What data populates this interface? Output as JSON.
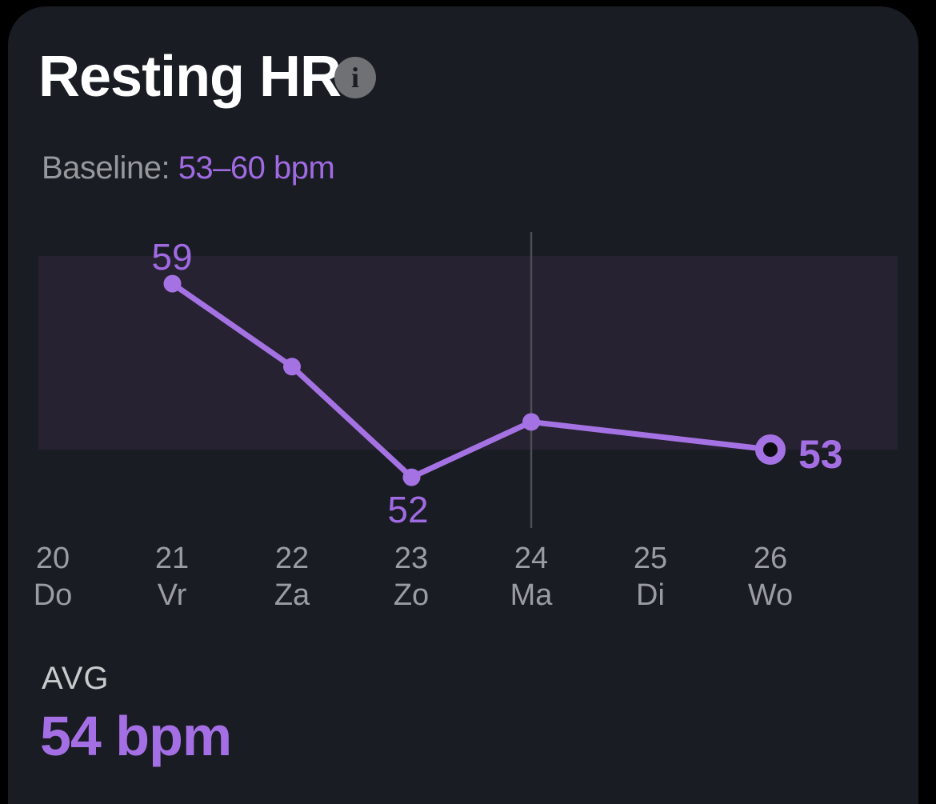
{
  "card": {
    "title": "Resting HR",
    "info_glyph": "i",
    "baseline_label": "Baseline:",
    "baseline_value": "53–60 bpm",
    "avg_label": "AVG",
    "avg_value": "54 bpm"
  },
  "chart_data": {
    "type": "line",
    "title": "Resting HR",
    "unit": "bpm",
    "x_labels": [
      {
        "date": "20",
        "day": "Do"
      },
      {
        "date": "21",
        "day": "Vr"
      },
      {
        "date": "22",
        "day": "Za"
      },
      {
        "date": "23",
        "day": "Zo"
      },
      {
        "date": "24",
        "day": "Ma"
      },
      {
        "date": "25",
        "day": "Di"
      },
      {
        "date": "26",
        "day": "Wo"
      }
    ],
    "series": [
      {
        "name": "Resting HR",
        "points": [
          {
            "x": 21,
            "y": 59,
            "label": "59",
            "label_pos": "above"
          },
          {
            "x": 22,
            "y": 56
          },
          {
            "x": 23,
            "y": 52,
            "label": "52",
            "label_pos": "below"
          },
          {
            "x": 24,
            "y": 54
          },
          {
            "x": 26,
            "y": 53,
            "label": "53",
            "label_pos": "right",
            "marker": "ring"
          }
        ]
      }
    ],
    "baseline_band": {
      "min": 53,
      "max": 60
    },
    "divider_day": 24,
    "avg": 54,
    "ylim": [
      50,
      62
    ],
    "legend": "none",
    "grid": "single-vertical-divider",
    "colors": {
      "line": "#a572e3",
      "point_label": "#a06ae2",
      "band": "#262231",
      "gridline": "#4d4d55",
      "ring_center": "#0d0d11",
      "card_bg": "#191c22",
      "title": "#ffffff",
      "axis_text": "#9b9ca2"
    }
  }
}
